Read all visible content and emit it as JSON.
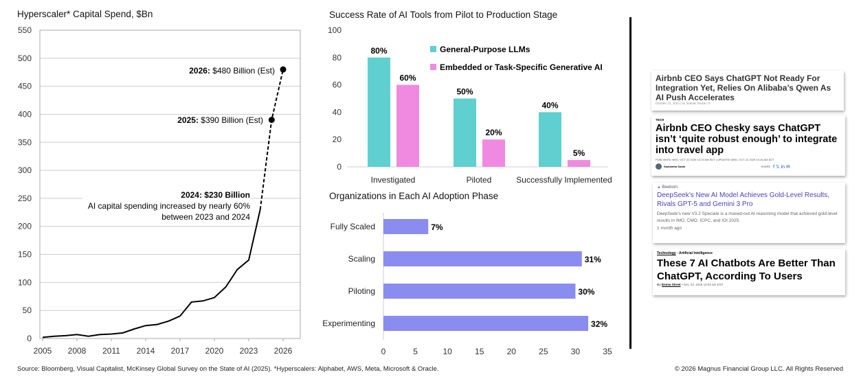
{
  "chart_data": [
    {
      "type": "line",
      "title": "Hyperscaler* Capital Spend, $Bn",
      "xlabel": "",
      "ylabel": "",
      "ylim": [
        0,
        550
      ],
      "yticks": [
        0,
        50,
        100,
        150,
        200,
        250,
        300,
        350,
        400,
        450,
        500,
        550
      ],
      "xticks": [
        2005,
        2008,
        2011,
        2014,
        2017,
        2020,
        2023,
        2026
      ],
      "grid": true,
      "series": [
        {
          "x": [
            2005,
            2006,
            2007,
            2008,
            2009,
            2010,
            2011,
            2012,
            2013,
            2014,
            2015,
            2016,
            2017,
            2018,
            2019,
            2020,
            2021,
            2022,
            2023,
            2024
          ],
          "y": [
            2,
            4,
            5,
            7,
            4,
            7,
            8,
            10,
            17,
            23,
            25,
            31,
            40,
            65,
            67,
            73,
            92,
            123,
            140,
            230
          ],
          "style": "solid"
        },
        {
          "x": [
            2024,
            2025,
            2026
          ],
          "y": [
            230,
            390,
            480
          ],
          "style": "dashed"
        }
      ],
      "annotations": [
        {
          "bold": "2026:",
          "text": " $480 Billion (Est)"
        },
        {
          "bold": "2025:",
          "text": " $390 Billion (Est)"
        },
        {
          "bold": "2024: $230 Billion",
          "lines": [
            "AI capital spending increased by nearly 60%",
            "between 2023 and 2024"
          ]
        }
      ]
    },
    {
      "type": "bar",
      "title": "Success Rate of AI Tools from Pilot to Production Stage",
      "ylim": [
        0,
        100
      ],
      "yticks": [
        0,
        20,
        40,
        60,
        80,
        100
      ],
      "legend": "top-right",
      "categories": [
        "Investigated",
        "Piloted",
        "Successfully Implemented"
      ],
      "series": [
        {
          "name": "General-Purpose LLMs",
          "values": [
            80,
            50,
            40
          ],
          "labels": [
            "80%",
            "50%",
            "40%"
          ],
          "color": "#5fcfcf"
        },
        {
          "name": "Embedded or Task-Specific Generative AI",
          "values": [
            60,
            20,
            5
          ],
          "labels": [
            "60%",
            "20%",
            "5%"
          ],
          "color": "#f08ae0"
        }
      ]
    },
    {
      "type": "bar",
      "orientation": "horizontal",
      "title": "Organizations in Each AI Adoption Phase",
      "xlim": [
        0,
        35
      ],
      "xticks": [
        0,
        5,
        10,
        15,
        20,
        25,
        30,
        35
      ],
      "categories": [
        "Fully Scaled",
        "Scaling",
        "Piloting",
        "Experimenting"
      ],
      "values": [
        7,
        31,
        30,
        32
      ],
      "labels": [
        "7%",
        "31%",
        "30%",
        "32%"
      ],
      "color": "#8b8cf0"
    }
  ],
  "news": [
    {
      "headline": "Airbnb CEO Says ChatGPT Not Ready For Integration Yet, Relies On Alibaba’s Qwen As AI Push Accelerates",
      "meta": "October 23, 2025 | by Samuel Nwite | 0"
    },
    {
      "tag": "TECH",
      "headline": "Airbnb CEO Chesky says ChatGPT isn’t ‘quite robust enough’ to integrate into travel app",
      "meta": "PUBLISHED WED, OCT 22 2025·10:19 AM EDT | UPDATED WED, OCT 22 2025·10:26 AM EDT",
      "author": "Samantha Subin",
      "share": "SHARE"
    },
    {
      "source": "Beebom",
      "headline": "DeepSeek’s New AI Model Achieves Gold-Level Results, Rivals GPT-5 and Gemini 3 Pro",
      "summary": "DeepSeek’s new V3.2 Speciale is a maxed-out AI reasoning model that achieved gold-level results in IMO, CMO, ICPC, and IOI 2025.",
      "time": "1 month ago"
    },
    {
      "crumb1": "Technology",
      "crumb2": "Artificial Intelligence",
      "headline": "These 7 AI Chatbots Are Better Than ChatGPT, According To Users",
      "by": "By",
      "author": "Emma Street",
      "date": "• Nov. 23, 2025 10:02 am EST"
    }
  ],
  "footer": {
    "source": "Source: Bloomberg, Visual Capitalist, McKinsey Global Survey on the State of AI (2025). *Hyperscalers: Alphabet, AWS, Meta, Microsoft & Oracle.",
    "copyright": "© 2026 Magnus Financial Group LLC. All Rights Reserved"
  }
}
